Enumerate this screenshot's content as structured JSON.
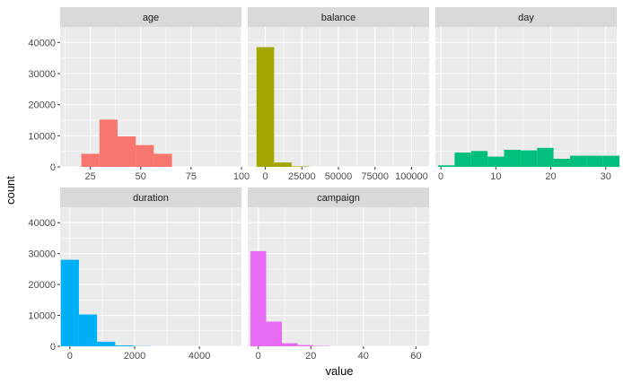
{
  "chart_data": {
    "type": "bar",
    "title": "",
    "xlabel": "value",
    "ylabel": "count",
    "ylim": [
      0,
      45000
    ],
    "y_ticks": [
      0,
      10000,
      20000,
      30000,
      40000
    ],
    "y_tick_labels": [
      "0",
      "10000",
      "20000",
      "30000",
      "40000"
    ],
    "panel_background": "#ebebeb",
    "strip_background": "#d9d9d9",
    "panels": [
      {
        "name": "age",
        "color": "#F8766D",
        "xlim": [
          10,
          100
        ],
        "x_ticks": [
          25,
          50,
          75,
          100
        ],
        "x_tick_labels": [
          "25",
          "50",
          "75",
          "100"
        ],
        "bins": [
          {
            "x0": 20.5,
            "x1": 29.5,
            "count": 4200
          },
          {
            "x0": 29.5,
            "x1": 38.5,
            "count": 15200
          },
          {
            "x0": 38.5,
            "x1": 47.5,
            "count": 9800
          },
          {
            "x0": 47.5,
            "x1": 56.5,
            "count": 7000
          },
          {
            "x0": 56.5,
            "x1": 65.5,
            "count": 4200
          }
        ]
      },
      {
        "name": "balance",
        "color": "#A3A500",
        "xlim": [
          -12000,
          112000
        ],
        "x_ticks": [
          0,
          25000,
          50000,
          75000,
          100000
        ],
        "x_tick_labels": [
          "0",
          "25000",
          "50000",
          "75000",
          "100000"
        ],
        "bins": [
          {
            "x0": -6000,
            "x1": 6000,
            "count": 38500
          },
          {
            "x0": 6000,
            "x1": 18000,
            "count": 1400
          },
          {
            "x0": 18000,
            "x1": 30000,
            "count": 150
          }
        ]
      },
      {
        "name": "day",
        "color": "#00BF7D",
        "xlim": [
          -1,
          32
        ],
        "x_ticks": [
          0,
          10,
          20,
          30
        ],
        "x_tick_labels": [
          "0",
          "10",
          "20",
          "30"
        ],
        "bins": [
          {
            "x0": -0.5,
            "x1": 2.5,
            "count": 500
          },
          {
            "x0": 2.5,
            "x1": 5.5,
            "count": 4600
          },
          {
            "x0": 5.5,
            "x1": 8.5,
            "count": 5100
          },
          {
            "x0": 8.5,
            "x1": 11.5,
            "count": 3300
          },
          {
            "x0": 11.5,
            "x1": 14.5,
            "count": 5500
          },
          {
            "x0": 14.5,
            "x1": 17.5,
            "count": 5300
          },
          {
            "x0": 17.5,
            "x1": 20.5,
            "count": 6100
          },
          {
            "x0": 20.5,
            "x1": 23.5,
            "count": 2600
          },
          {
            "x0": 23.5,
            "x1": 26.5,
            "count": 3600
          },
          {
            "x0": 26.5,
            "x1": 29.5,
            "count": 3600
          },
          {
            "x0": 29.5,
            "x1": 32.5,
            "count": 3600
          }
        ]
      },
      {
        "name": "duration",
        "color": "#00B0F6",
        "xlim": [
          -300,
          5300
        ],
        "x_ticks": [
          0,
          2000,
          4000
        ],
        "x_tick_labels": [
          "0",
          "2000",
          "4000"
        ],
        "bins": [
          {
            "x0": -280,
            "x1": 280,
            "count": 28000
          },
          {
            "x0": 280,
            "x1": 840,
            "count": 10300
          },
          {
            "x0": 840,
            "x1": 1400,
            "count": 1500
          },
          {
            "x0": 1400,
            "x1": 1960,
            "count": 300
          },
          {
            "x0": 1960,
            "x1": 2520,
            "count": 60
          }
        ]
      },
      {
        "name": "campaign",
        "color": "#E76BF3",
        "xlim": [
          -4,
          65
        ],
        "x_ticks": [
          0,
          20,
          40,
          60
        ],
        "x_tick_labels": [
          "0",
          "20",
          "40",
          "60"
        ],
        "bins": [
          {
            "x0": -3,
            "x1": 3,
            "count": 30800
          },
          {
            "x0": 3,
            "x1": 9,
            "count": 8000
          },
          {
            "x0": 9,
            "x1": 15,
            "count": 1000
          },
          {
            "x0": 15,
            "x1": 21,
            "count": 400
          },
          {
            "x0": 21,
            "x1": 27,
            "count": 120
          }
        ]
      }
    ]
  }
}
